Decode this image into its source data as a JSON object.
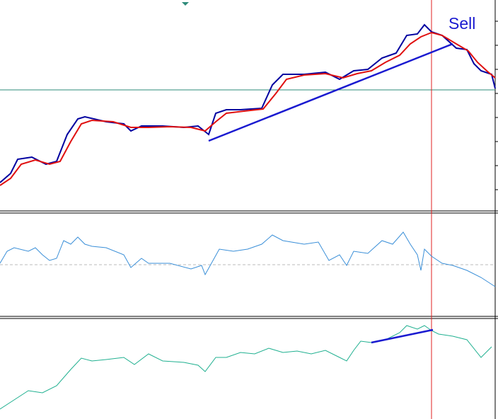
{
  "annotation": "Sell"
}
